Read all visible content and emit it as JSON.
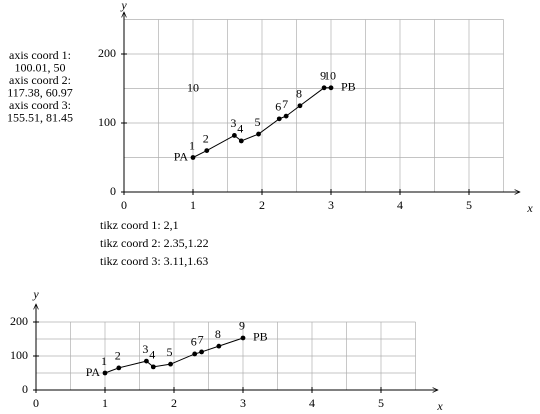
{
  "chart_data": [
    {
      "type": "line",
      "x_label": "x",
      "y_label": "y",
      "x": [
        1,
        1.2,
        1.6,
        1.7,
        1.95,
        2.25,
        2.35,
        2.55,
        2.9,
        3
      ],
      "values": [
        50,
        60,
        82,
        74,
        84,
        106,
        110,
        125,
        151,
        151
      ],
      "point_labels": [
        "1",
        "2",
        "3",
        "4",
        "5",
        "6",
        "7",
        "8",
        "9",
        "10"
      ],
      "start_label": "PA",
      "end_label": "PB",
      "annotations": [
        {
          "text": "10",
          "x": 1,
          "y": 150
        }
      ],
      "xlim": [
        0,
        5.5
      ],
      "ylim": [
        0,
        250
      ],
      "xticks": [
        0,
        1,
        2,
        3,
        4,
        5
      ],
      "yticks": [
        0,
        100,
        200
      ],
      "grid": true,
      "color": "#000000"
    },
    {
      "type": "line",
      "x_label": "x",
      "y_label": "y",
      "x": [
        1,
        1.2,
        1.6,
        1.7,
        1.95,
        2.3,
        2.4,
        2.65,
        3
      ],
      "values": [
        50,
        65,
        85,
        68,
        76,
        106,
        112,
        129,
        153
      ],
      "point_labels": [
        "1",
        "2",
        "3",
        "4",
        "5",
        "6",
        "7",
        "8",
        "9"
      ],
      "start_label": "PA",
      "end_label": "PB",
      "annotations": [],
      "xlim": [
        0,
        5.5
      ],
      "ylim": [
        0,
        200
      ],
      "xticks": [
        0,
        1,
        2,
        3,
        4,
        5
      ],
      "yticks": [
        0,
        100,
        200
      ],
      "grid": true,
      "color": "#000000"
    }
  ],
  "side_text": {
    "axis_coords": [
      "axis coord 1:",
      "100.01,   50",
      "axis coord 2:",
      "117.38,   60.97",
      "axis coord 3:",
      "155.51,   81.45"
    ],
    "tikz_coords": [
      "tikz coord 1:  2,1",
      "tikz coord 2:  2.35,1.22",
      "tikz coord 3:  3.11,1.63"
    ]
  }
}
